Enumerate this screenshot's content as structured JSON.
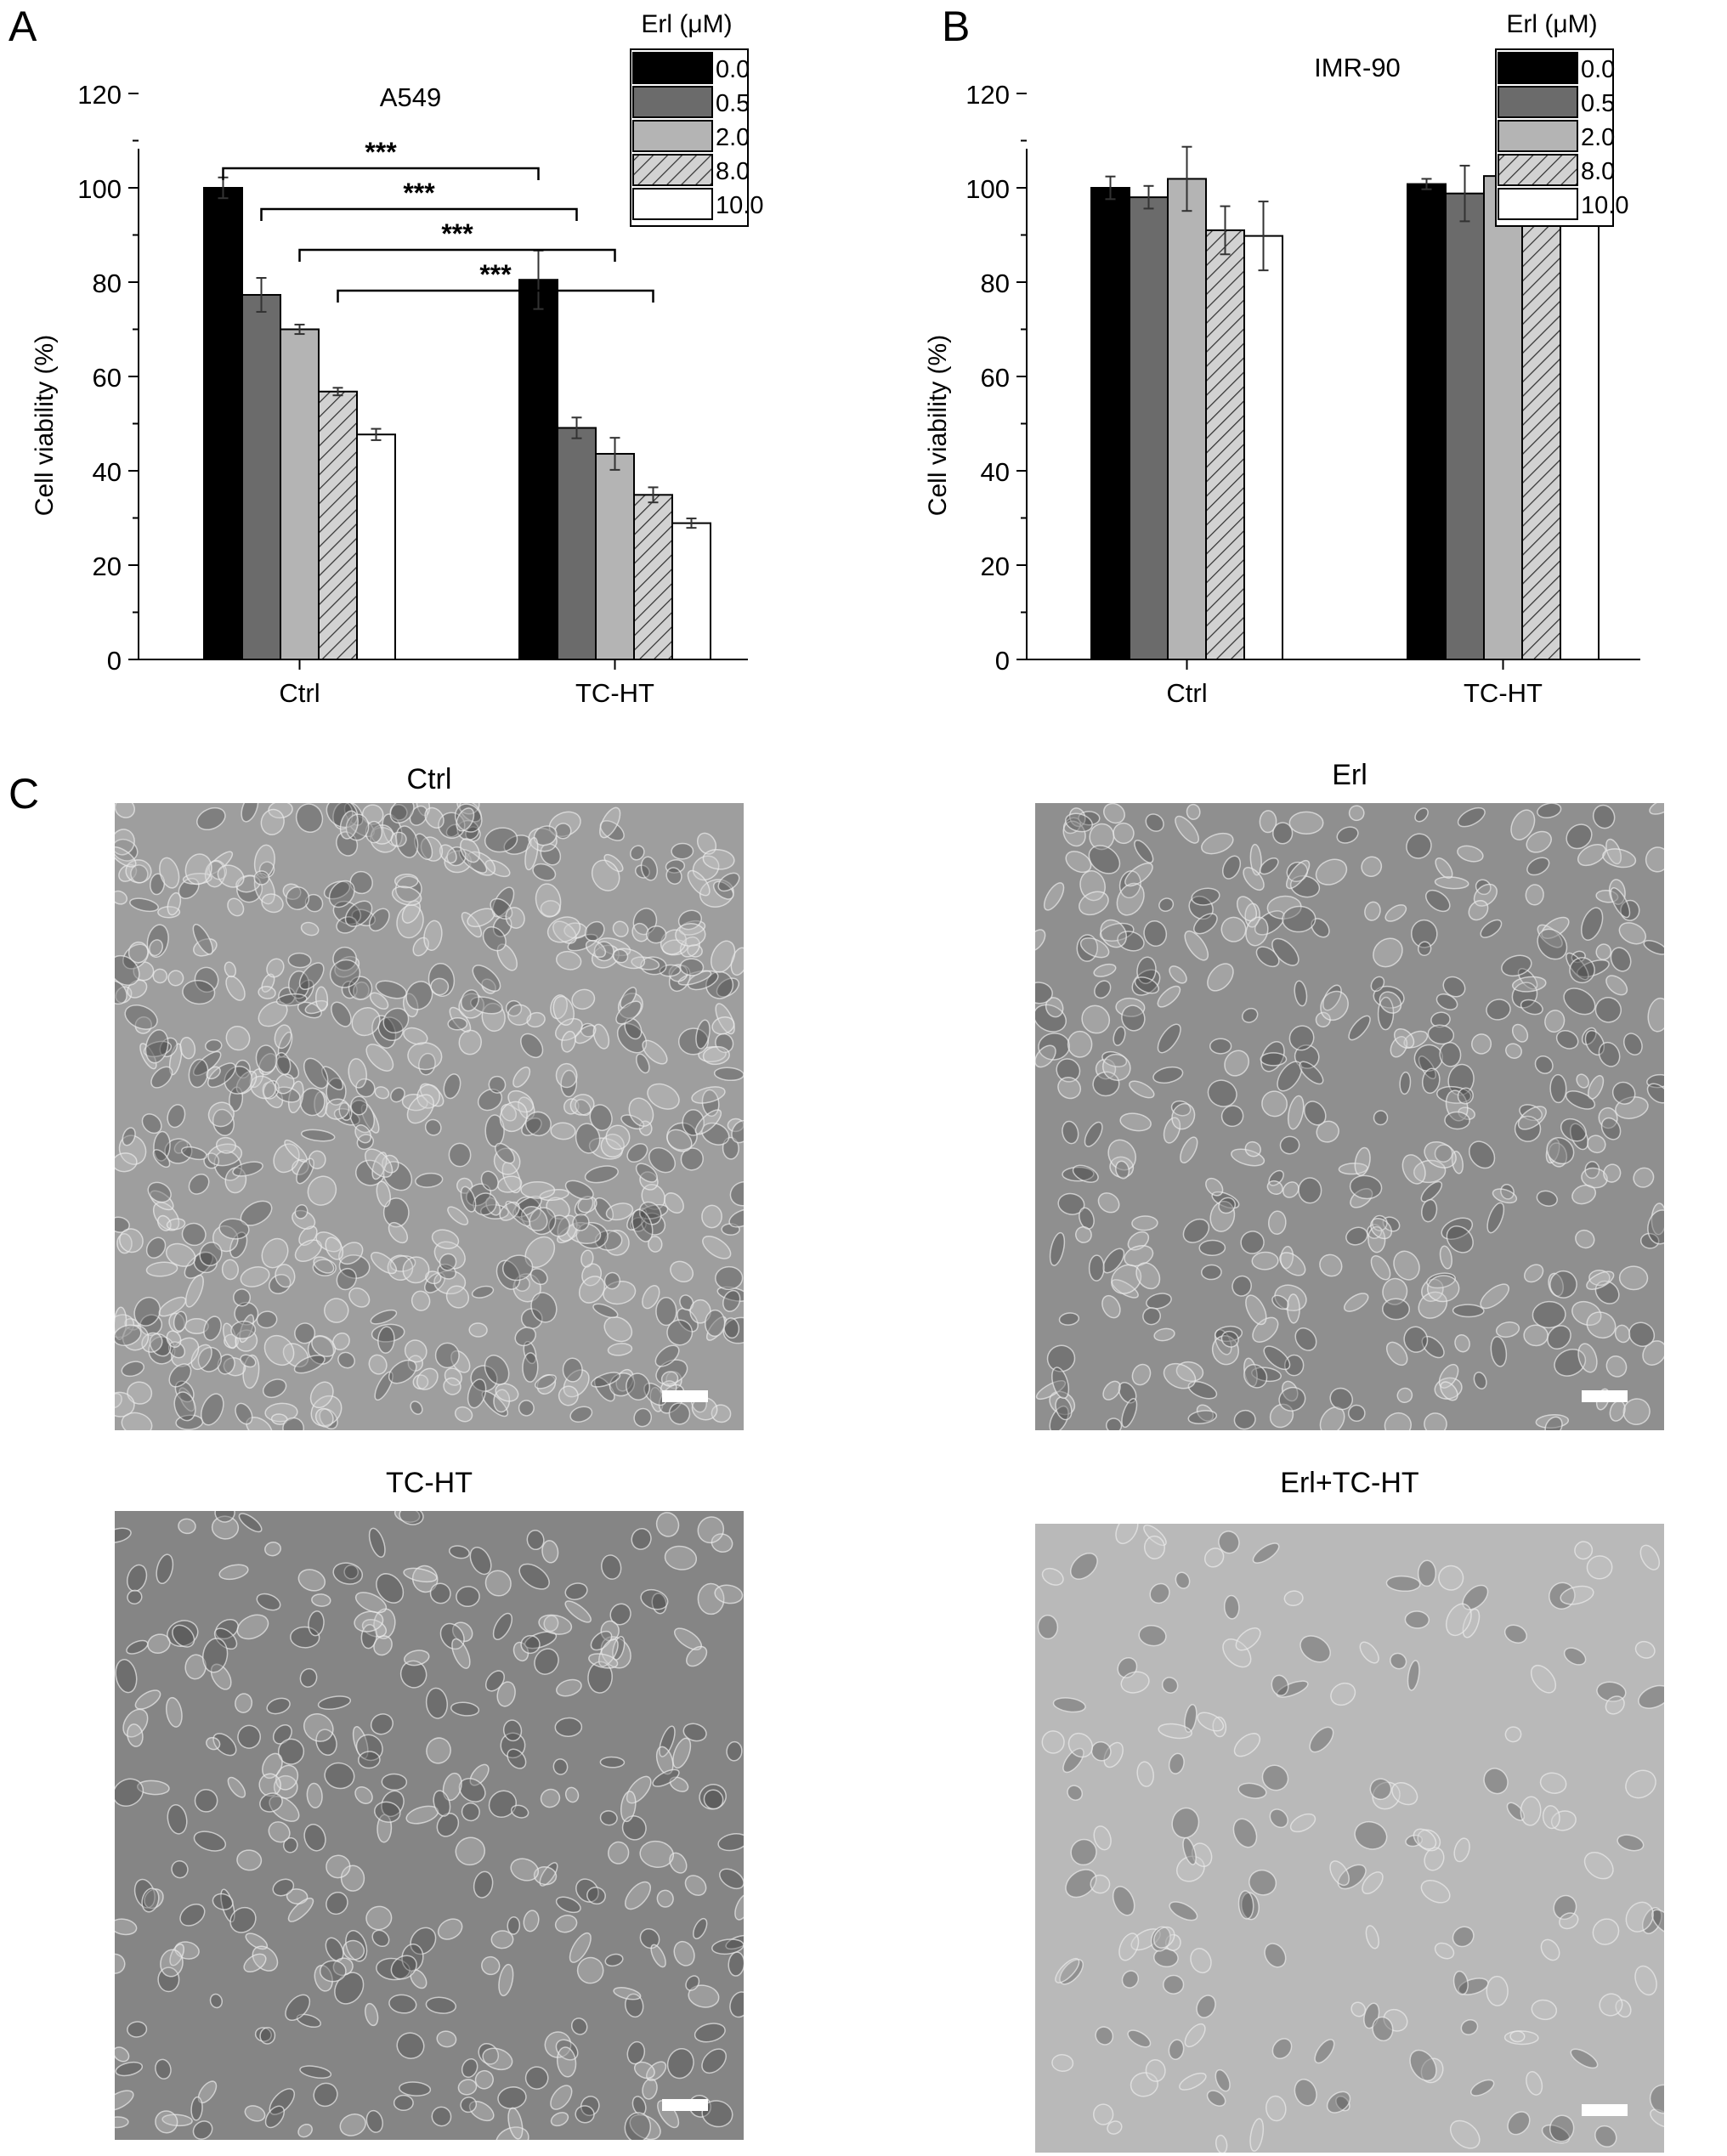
{
  "panels": {
    "a": "A",
    "b": "B",
    "c": "C"
  },
  "legend": {
    "title": "Erl (μM)",
    "entries": [
      "0.0",
      "0.5",
      "2.0",
      "8.0",
      "10.0"
    ]
  },
  "colors": {
    "series": [
      "#000000",
      "#6b6b6b",
      "#b4b4b4",
      "#d2d2d2",
      "#ffffff"
    ],
    "pattern_series_index": 3,
    "micro_backgrounds": [
      "#9e9e9e",
      "#8f8f8f",
      "#858585",
      "#b9b9b9"
    ]
  },
  "chart_data": [
    {
      "type": "bar",
      "title": "A549",
      "ylabel": "Cell viability (%)",
      "xlabel": "",
      "categories": [
        "Ctrl",
        "TC-HT"
      ],
      "ylim": [
        0,
        130
      ],
      "yticks": [
        "0",
        "20",
        "40",
        "60",
        "80",
        "100",
        "120"
      ],
      "series": [
        {
          "name": "0.0",
          "values": [
            100.0,
            80.5
          ],
          "errors": [
            2.2,
            6.2
          ]
        },
        {
          "name": "0.5",
          "values": [
            77.3,
            49.1
          ],
          "errors": [
            3.6,
            2.2
          ]
        },
        {
          "name": "2.0",
          "values": [
            70.0,
            43.6
          ],
          "errors": [
            1.0,
            3.4
          ]
        },
        {
          "name": "8.0",
          "values": [
            56.8,
            34.9
          ],
          "errors": [
            0.8,
            1.6
          ]
        },
        {
          "name": "10.0",
          "values": [
            47.7,
            28.9
          ],
          "errors": [
            1.2,
            1.0
          ]
        }
      ],
      "significance": [
        {
          "label": "***",
          "from_series": "0.0"
        },
        {
          "label": "***",
          "from_series": "0.5"
        },
        {
          "label": "***",
          "from_series": "2.0"
        },
        {
          "label": "***",
          "from_series": "8.0"
        }
      ]
    },
    {
      "type": "bar",
      "title": "IMR-90",
      "ylabel": "Cell viability (%)",
      "xlabel": "",
      "categories": [
        "Ctrl",
        "TC-HT"
      ],
      "ylim": [
        0,
        130
      ],
      "yticks": [
        "0",
        "20",
        "40",
        "60",
        "80",
        "100",
        "120"
      ],
      "series": [
        {
          "name": "0.0",
          "values": [
            100.0,
            100.8
          ],
          "errors": [
            2.4,
            1.1
          ]
        },
        {
          "name": "0.5",
          "values": [
            98.0,
            98.8
          ],
          "errors": [
            2.4,
            5.9
          ]
        },
        {
          "name": "2.0",
          "values": [
            101.9,
            102.5
          ],
          "errors": [
            6.8,
            2.6
          ]
        },
        {
          "name": "8.0",
          "values": [
            91.0,
            96.0
          ],
          "errors": [
            5.1,
            3.2
          ]
        },
        {
          "name": "10.0",
          "values": [
            89.8,
            97.4
          ],
          "errors": [
            7.3,
            2.4
          ]
        }
      ]
    }
  ],
  "micrographs": [
    {
      "title": "Ctrl"
    },
    {
      "title": "Erl"
    },
    {
      "title": "TC-HT"
    },
    {
      "title": "Erl+TC-HT"
    }
  ]
}
